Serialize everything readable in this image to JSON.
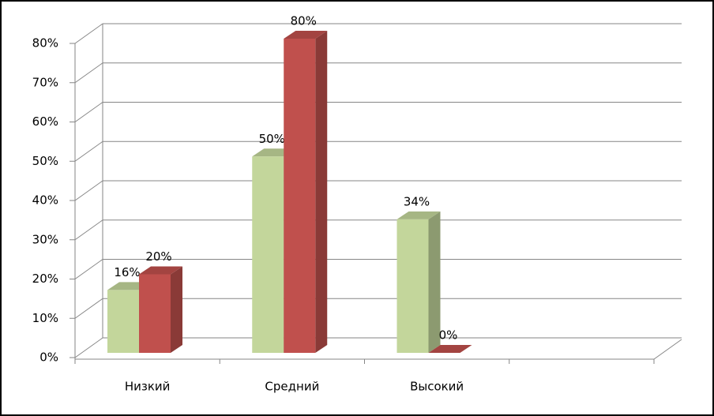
{
  "chart_data": {
    "type": "bar",
    "categories": [
      "Низкий",
      "Средний",
      "Высокий",
      null
    ],
    "series": [
      {
        "color": "#c3d69b",
        "values": [
          16,
          50,
          34,
          null
        ],
        "value_labels": [
          "16%",
          "50%",
          "34%",
          null
        ]
      },
      {
        "color": "#c0504d",
        "values": [
          20,
          80,
          0,
          null
        ],
        "value_labels": [
          "20%",
          "80%",
          "0%",
          null
        ]
      }
    ],
    "ylim": [
      0,
      80
    ],
    "yticks": [
      {
        "value": 0,
        "label": "0%"
      },
      {
        "value": 10,
        "label": "10%"
      },
      {
        "value": 20,
        "label": "20%"
      },
      {
        "value": 30,
        "label": "30%"
      },
      {
        "value": 40,
        "label": "40%"
      },
      {
        "value": 50,
        "label": "50%"
      },
      {
        "value": 60,
        "label": "60%"
      },
      {
        "value": 70,
        "label": "70%"
      },
      {
        "value": 80,
        "label": "80%"
      }
    ],
    "grid": true
  }
}
